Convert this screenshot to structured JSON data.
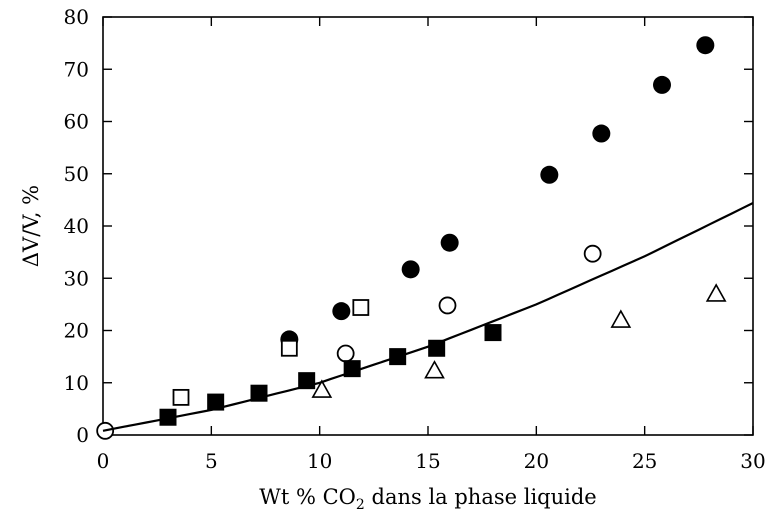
{
  "chart_data": {
    "type": "scatter",
    "title": "",
    "xlabel": "Wt % CO",
    "xlabel_sub": "2",
    "xlabel_suffix": " dans la phase liquide",
    "ylabel": "ΔV/V, %",
    "xlim": [
      0,
      30
    ],
    "ylim": [
      0,
      80
    ],
    "xticks": [
      0,
      5,
      10,
      15,
      20,
      25,
      30
    ],
    "yticks": [
      0,
      10,
      20,
      30,
      40,
      50,
      60,
      70,
      80
    ],
    "grid": false,
    "legend": "none",
    "series": [
      {
        "marker": "filled-circle",
        "x": [
          8.6,
          11.0,
          14.2,
          16.0,
          20.6,
          23.0,
          25.8,
          27.8
        ],
        "y": [
          18.3,
          23.7,
          31.7,
          36.8,
          49.8,
          57.7,
          67.0,
          74.6
        ]
      },
      {
        "marker": "open-circle",
        "x": [
          0.1,
          11.2,
          15.9,
          22.6
        ],
        "y": [
          0.8,
          15.6,
          24.8,
          34.7
        ]
      },
      {
        "marker": "filled-square",
        "x": [
          3.0,
          5.2,
          7.2,
          9.4,
          11.5,
          13.6,
          15.4,
          18.0
        ],
        "y": [
          3.4,
          6.3,
          8.0,
          10.4,
          12.7,
          15.0,
          16.6,
          19.6
        ]
      },
      {
        "marker": "open-square",
        "x": [
          3.6,
          8.6,
          11.9
        ],
        "y": [
          7.2,
          16.6,
          24.4
        ]
      },
      {
        "marker": "open-triangle",
        "x": [
          10.1,
          15.3,
          23.9,
          28.3
        ],
        "y": [
          8.6,
          12.3,
          22.0,
          27.0
        ]
      },
      {
        "marker": "line",
        "x": [
          0,
          5,
          10,
          15,
          20,
          25,
          30
        ],
        "y": [
          0.8,
          4.8,
          10.0,
          16.9,
          25.0,
          34.2,
          44.4
        ]
      }
    ]
  }
}
